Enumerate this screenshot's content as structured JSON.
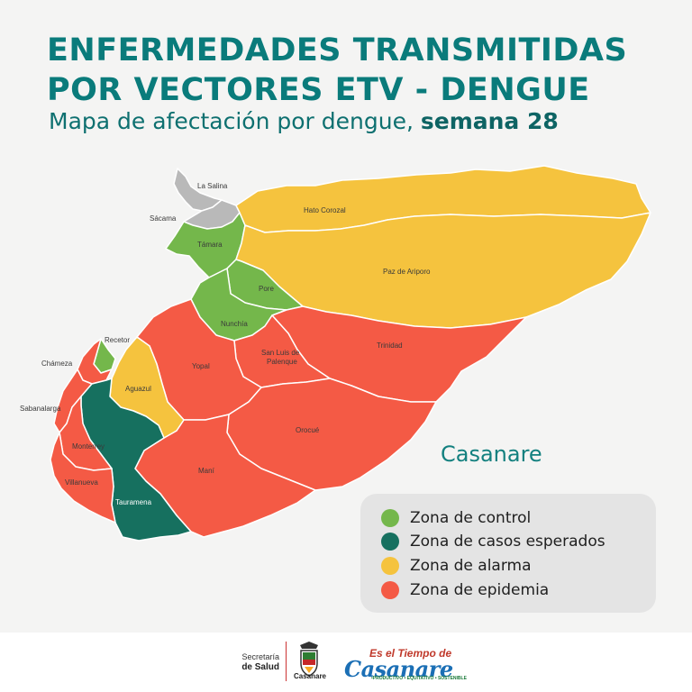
{
  "header": {
    "title_line1": "ENFERMEDADES TRANSMITIDAS",
    "title_line2": "POR VECTORES ETV - DENGUE",
    "subtitle_prefix": "Mapa de afectación por dengue,",
    "subtitle_week": "semana 28"
  },
  "map": {
    "region_name": "Casanare",
    "colors": {
      "control": "#74b74b",
      "esperados": "#16705f",
      "alarma": "#f5c33e",
      "epidemia": "#f45a45",
      "sin_dato": "#b9b9b9"
    },
    "municipalities": [
      {
        "name": "La Salina",
        "zone": "sin_dato"
      },
      {
        "name": "Sácama",
        "zone": "sin_dato"
      },
      {
        "name": "Támara",
        "zone": "control"
      },
      {
        "name": "Pore",
        "zone": "control"
      },
      {
        "name": "Nunchía",
        "zone": "control"
      },
      {
        "name": "Recetor",
        "zone": "control"
      },
      {
        "name": "Hato Corozal",
        "zone": "alarma"
      },
      {
        "name": "Paz de Ariporo",
        "zone": "alarma"
      },
      {
        "name": "Aguazul",
        "zone": "alarma"
      },
      {
        "name": "Trinidad",
        "zone": "epidemia"
      },
      {
        "name": "San Luis de Palenque",
        "zone": "epidemia"
      },
      {
        "name": "Yopal",
        "zone": "epidemia"
      },
      {
        "name": "Orocué",
        "zone": "epidemia"
      },
      {
        "name": "Maní",
        "zone": "epidemia"
      },
      {
        "name": "Chámeza",
        "zone": "epidemia"
      },
      {
        "name": "Sabanalarga",
        "zone": "epidemia"
      },
      {
        "name": "Monterrey",
        "zone": "epidemia"
      },
      {
        "name": "Villanueva",
        "zone": "epidemia"
      },
      {
        "name": "Tauramena",
        "zone": "esperados"
      }
    ],
    "labels": {
      "la_salina": "La Salina",
      "sacama": "Sácama",
      "tamara": "Támara",
      "hato_corozal": "Hato Corozal",
      "paz_de_ariporo": "Paz de Ariporo",
      "pore": "Pore",
      "nunchia": "Nunchía",
      "recetor": "Recetor",
      "chameza": "Chámeza",
      "aguazul": "Aguazul",
      "yopal": "Yopal",
      "san_luis_1": "San Luis de",
      "san_luis_2": "Palenque",
      "trinidad": "Trinidad",
      "sabanalarga": "Sabanalarga",
      "monterrey": "Monterrey",
      "orocue": "Orocué",
      "mani": "Maní",
      "villanueva": "Villanueva",
      "tauramena": "Tauramena"
    }
  },
  "legend": {
    "items": [
      {
        "label": "Zona de control",
        "color": "#74b74b"
      },
      {
        "label": "Zona de casos esperados",
        "color": "#16705f"
      },
      {
        "label": "Zona de alarma",
        "color": "#f5c33e"
      },
      {
        "label": "Zona de epidemia",
        "color": "#f45a45"
      }
    ]
  },
  "footer": {
    "secretaria_line1": "Secretaría",
    "secretaria_line2": "de Salud",
    "seal_text": "Casanare",
    "slogan_top": "Es el Tiempo de",
    "slogan_main": "Casanare",
    "slogan_sub": "•PRODUCTIVO • EQUITATIVO • SOSTENIBLE"
  }
}
